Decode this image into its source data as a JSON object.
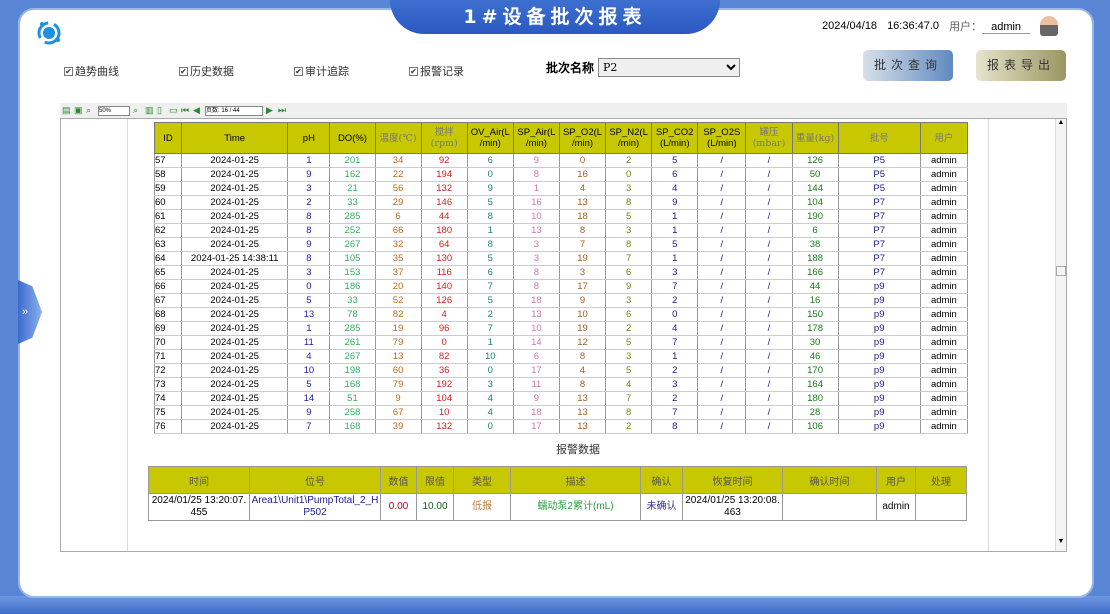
{
  "header": {
    "title": "1#设备批次报表",
    "date": "2024/04/18",
    "time": "16:36:47.0",
    "user_label": "用户：",
    "user": "admin"
  },
  "filters": [
    {
      "label": "趋势曲线",
      "checked": true
    },
    {
      "label": "历史数据",
      "checked": true
    },
    {
      "label": "审计追踪",
      "checked": true
    },
    {
      "label": "报警记录",
      "checked": true
    }
  ],
  "batch": {
    "label": "批次名称",
    "value": "P2"
  },
  "buttons": {
    "query": "批次查询",
    "export": "报表导出"
  },
  "toolbar": {
    "zoom": "50%",
    "page": "页数: 16 / 44"
  },
  "data_table": {
    "columns": [
      "ID",
      "Time",
      "pH",
      "DO(%)",
      "温度(℃)",
      "搅拌\n(rpm)",
      "OV_Air(L\n/min)",
      "SP_Air(L\n/min)",
      "SP_O2(L\n/min)",
      "SP_N2(L\n/min)",
      "SP_CO2\n(L/min)",
      "SP_O2S\n(L/min)",
      "罐压\n(mbar)",
      "重量(kg)",
      "批号",
      "用户"
    ],
    "rows": [
      [
        "57",
        "2024-01-25",
        "1",
        "201",
        "34",
        "92",
        "6",
        "9",
        "0",
        "2",
        "5",
        "/",
        "/",
        "126",
        "P5",
        "admin"
      ],
      [
        "58",
        "2024-01-25",
        "9",
        "162",
        "22",
        "194",
        "0",
        "8",
        "16",
        "0",
        "6",
        "/",
        "/",
        "50",
        "P5",
        "admin"
      ],
      [
        "59",
        "2024-01-25",
        "3",
        "21",
        "56",
        "132",
        "9",
        "1",
        "4",
        "3",
        "4",
        "/",
        "/",
        "144",
        "P5",
        "admin"
      ],
      [
        "60",
        "2024-01-25",
        "2",
        "33",
        "29",
        "146",
        "5",
        "16",
        "13",
        "8",
        "9",
        "/",
        "/",
        "104",
        "P7",
        "admin"
      ],
      [
        "61",
        "2024-01-25",
        "8",
        "285",
        "6",
        "44",
        "8",
        "10",
        "18",
        "5",
        "1",
        "/",
        "/",
        "190",
        "P7",
        "admin"
      ],
      [
        "62",
        "2024-01-25",
        "8",
        "252",
        "66",
        "180",
        "1",
        "13",
        "8",
        "3",
        "1",
        "/",
        "/",
        "6",
        "P7",
        "admin"
      ],
      [
        "63",
        "2024-01-25",
        "9",
        "267",
        "32",
        "64",
        "8",
        "3",
        "7",
        "8",
        "5",
        "/",
        "/",
        "38",
        "P7",
        "admin"
      ],
      [
        "64",
        "2024-01-25 14:38:11",
        "8",
        "105",
        "35",
        "130",
        "5",
        "3",
        "19",
        "7",
        "1",
        "/",
        "/",
        "188",
        "P7",
        "admin"
      ],
      [
        "65",
        "2024-01-25",
        "3",
        "153",
        "37",
        "116",
        "6",
        "8",
        "3",
        "6",
        "3",
        "/",
        "/",
        "166",
        "P7",
        "admin"
      ],
      [
        "66",
        "2024-01-25",
        "0",
        "186",
        "20",
        "140",
        "7",
        "8",
        "17",
        "9",
        "7",
        "/",
        "/",
        "44",
        "p9",
        "admin"
      ],
      [
        "67",
        "2024-01-25",
        "5",
        "33",
        "52",
        "126",
        "5",
        "18",
        "9",
        "3",
        "2",
        "/",
        "/",
        "16",
        "p9",
        "admin"
      ],
      [
        "68",
        "2024-01-25",
        "13",
        "78",
        "82",
        "4",
        "2",
        "13",
        "10",
        "6",
        "0",
        "/",
        "/",
        "150",
        "p9",
        "admin"
      ],
      [
        "69",
        "2024-01-25",
        "1",
        "285",
        "19",
        "96",
        "7",
        "10",
        "19",
        "2",
        "4",
        "/",
        "/",
        "178",
        "p9",
        "admin"
      ],
      [
        "70",
        "2024-01-25",
        "11",
        "261",
        "79",
        "0",
        "1",
        "14",
        "12",
        "5",
        "7",
        "/",
        "/",
        "30",
        "p9",
        "admin"
      ],
      [
        "71",
        "2024-01-25",
        "4",
        "267",
        "13",
        "82",
        "10",
        "6",
        "8",
        "3",
        "1",
        "/",
        "/",
        "46",
        "p9",
        "admin"
      ],
      [
        "72",
        "2024-01-25",
        "10",
        "198",
        "60",
        "36",
        "0",
        "17",
        "4",
        "5",
        "2",
        "/",
        "/",
        "170",
        "p9",
        "admin"
      ],
      [
        "73",
        "2024-01-25",
        "5",
        "168",
        "79",
        "192",
        "3",
        "11",
        "8",
        "4",
        "3",
        "/",
        "/",
        "164",
        "p9",
        "admin"
      ],
      [
        "74",
        "2024-01-25",
        "14",
        "51",
        "9",
        "104",
        "4",
        "9",
        "13",
        "7",
        "2",
        "/",
        "/",
        "180",
        "p9",
        "admin"
      ],
      [
        "75",
        "2024-01-25",
        "9",
        "258",
        "67",
        "10",
        "4",
        "18",
        "13",
        "8",
        "7",
        "/",
        "/",
        "28",
        "p9",
        "admin"
      ],
      [
        "76",
        "2024-01-25",
        "7",
        "168",
        "39",
        "132",
        "0",
        "17",
        "13",
        "2",
        "8",
        "/",
        "/",
        "106",
        "p9",
        "admin"
      ]
    ]
  },
  "alarm": {
    "title": "报警数据",
    "columns": [
      "时间",
      "位号",
      "数值",
      "限值",
      "类型",
      "描述",
      "确认",
      "恢复时间",
      "确认时间",
      "用户",
      "处理"
    ],
    "rows": [
      [
        "2024/01/25 13:20:07.455",
        "Area1\\Unit1\\PumpTotal_2_HP502",
        "0.00",
        "10.00",
        "低报",
        "蠕动泵2累计(mL)",
        "未确认",
        "2024/01/25 13:20:08.463",
        "",
        "admin",
        ""
      ]
    ]
  },
  "colors": {
    "header": "#c8c800",
    "banner": "#2f5fc6"
  }
}
